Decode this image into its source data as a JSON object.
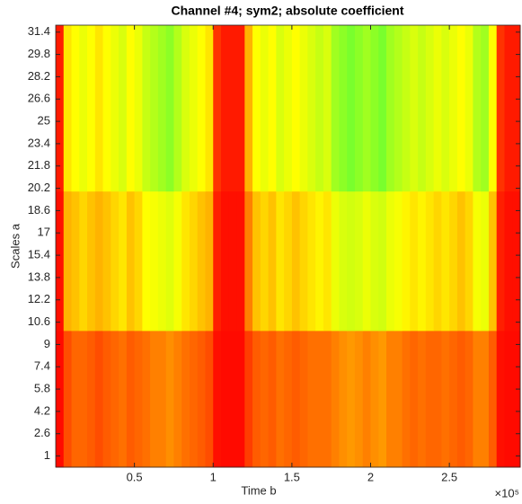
{
  "chart_data": {
    "type": "heatmap",
    "title": "Channel #4; sym2; absolute coefficient",
    "x_label": "Time  b",
    "y_label": "Scales a",
    "x_exponent_label": "×10⁵",
    "xlim": [
      0,
      295000
    ],
    "ylim": [
      0.2,
      31.9
    ],
    "xticks": [
      {
        "value": 50000,
        "label": "0.5"
      },
      {
        "value": 100000,
        "label": "1"
      },
      {
        "value": 150000,
        "label": "1.5"
      },
      {
        "value": 200000,
        "label": "2"
      },
      {
        "value": 250000,
        "label": "2.5"
      }
    ],
    "yticks": [
      1,
      2.6,
      4.2,
      5.8,
      7.4,
      9,
      10.6,
      12.2,
      13.8,
      15.4,
      17,
      18.6,
      20.2,
      21.8,
      23.4,
      25,
      26.6,
      28.2,
      29.8,
      31.4
    ],
    "x_bins": [
      0,
      5000,
      10000,
      15000,
      20000,
      25000,
      30000,
      35000,
      40000,
      45000,
      50000,
      55000,
      60000,
      65000,
      70000,
      75000,
      80000,
      85000,
      90000,
      95000,
      100000,
      105000,
      110000,
      115000,
      120000,
      125000,
      130000,
      135000,
      140000,
      145000,
      150000,
      155000,
      160000,
      165000,
      170000,
      175000,
      180000,
      185000,
      190000,
      195000,
      200000,
      205000,
      210000,
      215000,
      220000,
      225000,
      230000,
      235000,
      240000,
      245000,
      250000,
      255000,
      260000,
      265000,
      270000,
      275000,
      280000,
      285000,
      290000,
      295000
    ],
    "y_bins": [
      0.2,
      10,
      20,
      31.9
    ],
    "zlim": [
      0,
      1
    ],
    "colormap": [
      "#ff0000",
      "#ffff00",
      "#40ff40"
    ],
    "z": [
      [
        0.02,
        0.15,
        0.2,
        0.2,
        0.18,
        0.15,
        0.18,
        0.2,
        0.22,
        0.18,
        0.2,
        0.22,
        0.25,
        0.25,
        0.28,
        0.25,
        0.22,
        0.2,
        0.18,
        0.15,
        0.03,
        0.02,
        0.02,
        0.02,
        0.12,
        0.18,
        0.2,
        0.18,
        0.22,
        0.2,
        0.18,
        0.2,
        0.22,
        0.22,
        0.22,
        0.25,
        0.28,
        0.3,
        0.28,
        0.25,
        0.28,
        0.3,
        0.25,
        0.25,
        0.22,
        0.2,
        0.22,
        0.2,
        0.2,
        0.22,
        0.2,
        0.18,
        0.2,
        0.25,
        0.25,
        0.18,
        0.03,
        0.02,
        0.02
      ],
      [
        0.03,
        0.35,
        0.38,
        0.42,
        0.38,
        0.35,
        0.38,
        0.42,
        0.45,
        0.38,
        0.42,
        0.5,
        0.52,
        0.55,
        0.58,
        0.52,
        0.45,
        0.42,
        0.38,
        0.35,
        0.06,
        0.03,
        0.03,
        0.03,
        0.25,
        0.38,
        0.42,
        0.38,
        0.45,
        0.42,
        0.38,
        0.42,
        0.45,
        0.48,
        0.45,
        0.55,
        0.6,
        0.62,
        0.6,
        0.55,
        0.6,
        0.62,
        0.55,
        0.52,
        0.48,
        0.45,
        0.48,
        0.45,
        0.42,
        0.45,
        0.42,
        0.38,
        0.42,
        0.52,
        0.55,
        0.38,
        0.06,
        0.03,
        0.03
      ],
      [
        0.05,
        0.45,
        0.5,
        0.55,
        0.5,
        0.45,
        0.5,
        0.55,
        0.6,
        0.5,
        0.55,
        0.65,
        0.7,
        0.75,
        0.8,
        0.7,
        0.6,
        0.55,
        0.5,
        0.45,
        0.1,
        0.05,
        0.05,
        0.05,
        0.35,
        0.5,
        0.55,
        0.5,
        0.6,
        0.55,
        0.5,
        0.55,
        0.6,
        0.65,
        0.6,
        0.75,
        0.8,
        0.85,
        0.8,
        0.75,
        0.8,
        0.85,
        0.75,
        0.7,
        0.65,
        0.6,
        0.65,
        0.6,
        0.55,
        0.6,
        0.55,
        0.5,
        0.55,
        0.7,
        0.75,
        0.5,
        0.1,
        0.05,
        0.05
      ]
    ]
  }
}
